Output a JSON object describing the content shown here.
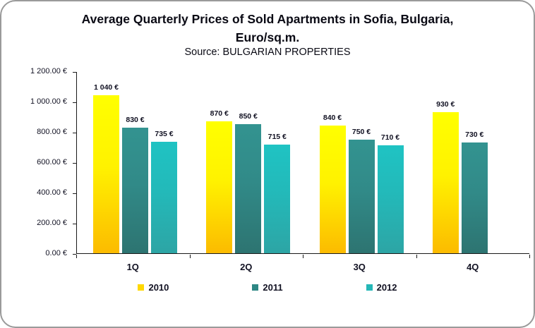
{
  "chart_data": {
    "type": "bar",
    "title": "Average Quarterly Prices of Sold Apartments in Sofia, Bulgaria, Euro/sq.m.",
    "title_lines": [
      "Average Quarterly Prices of Sold Apartments in Sofia, Bulgaria,",
      "Euro/sq.m."
    ],
    "source": "Source: BULGARIAN PROPERTIES",
    "categories": [
      "1Q",
      "2Q",
      "3Q",
      "4Q"
    ],
    "series": [
      {
        "name": "2010",
        "values": [
          1040,
          870,
          840,
          930
        ],
        "labels": [
          "1 040 €",
          "870 €",
          "840 €",
          "930 €"
        ],
        "color_top": "#FFFF00",
        "color_mid": "#FFF200",
        "color_bottom": "#FCBB00",
        "legend_color": "#FFD800"
      },
      {
        "name": "2011",
        "values": [
          830,
          850,
          750,
          730
        ],
        "labels": [
          "830 €",
          "850 €",
          "750 €",
          "730 €"
        ],
        "color_top": "#339390",
        "color_mid": "#318A88",
        "color_bottom": "#2D7471",
        "legend_color": "#2E8784"
      },
      {
        "name": "2012",
        "values": [
          735,
          715,
          710,
          null
        ],
        "labels": [
          "735 €",
          "715 €",
          "710 €",
          null
        ],
        "color_top": "#1FC3C3",
        "color_mid": "#23B9B9",
        "color_bottom": "#2DA5A5",
        "legend_color": "#25B7B7"
      }
    ],
    "xlabel": "",
    "ylabel": "",
    "ylim": [
      0,
      1200
    ],
    "y_ticks": [
      "1 200.00 €",
      "1 000.00 €",
      "800.00 €",
      "600.00 €",
      "400.00 €",
      "200.00 €",
      "0.00 €"
    ],
    "grid": false,
    "legend_position": "bottom"
  },
  "frame": {
    "border_color": "#9a9a9a",
    "background": "#ffffff"
  }
}
